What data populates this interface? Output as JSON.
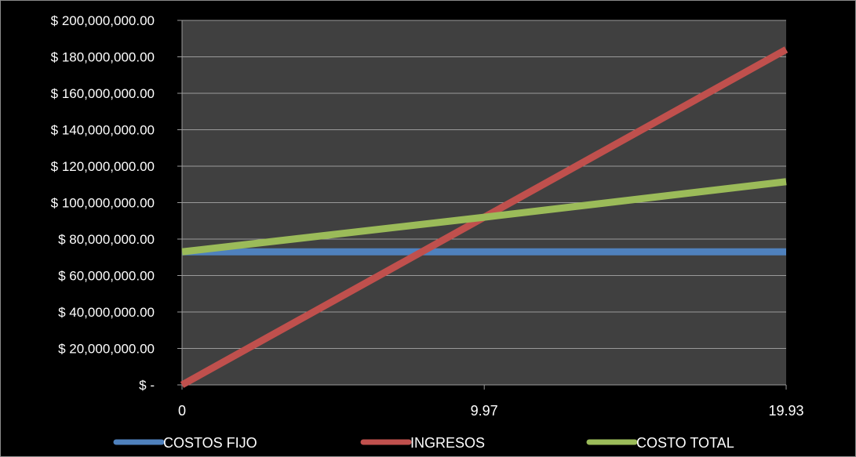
{
  "chart_data": {
    "type": "line",
    "title": "",
    "xlabel": "",
    "ylabel": "",
    "x": [
      0,
      9.97,
      19.93
    ],
    "x_tick_labels": [
      "0",
      "9.97",
      "19.93"
    ],
    "ylim": [
      0,
      200000000
    ],
    "y_ticks": [
      0,
      20000000,
      40000000,
      60000000,
      80000000,
      100000000,
      120000000,
      140000000,
      160000000,
      180000000,
      200000000
    ],
    "y_tick_labels": [
      "$ -",
      "$ 20,000,000.00",
      "$ 40,000,000.00",
      "$ 60,000,000.00",
      "$ 80,000,000.00",
      "$ 100,000,000.00",
      "$ 120,000,000.00",
      "$ 140,000,000.00",
      "$ 160,000,000.00",
      "$ 180,000,000.00",
      "$ 200,000,000.00"
    ],
    "grid": true,
    "legend_position": "bottom",
    "plot_background": "#404040",
    "figure_background": "#000000",
    "series": [
      {
        "name": "COSTOS FIJO",
        "color": "#4F81BD",
        "values": [
          73000000,
          73000000,
          73000000
        ]
      },
      {
        "name": "INGRESOS",
        "color": "#C0504D",
        "values": [
          0,
          92000000,
          184000000
        ]
      },
      {
        "name": "COSTO TOTAL",
        "color": "#9BBB59",
        "values": [
          73000000,
          92000000,
          111500000
        ]
      }
    ]
  }
}
